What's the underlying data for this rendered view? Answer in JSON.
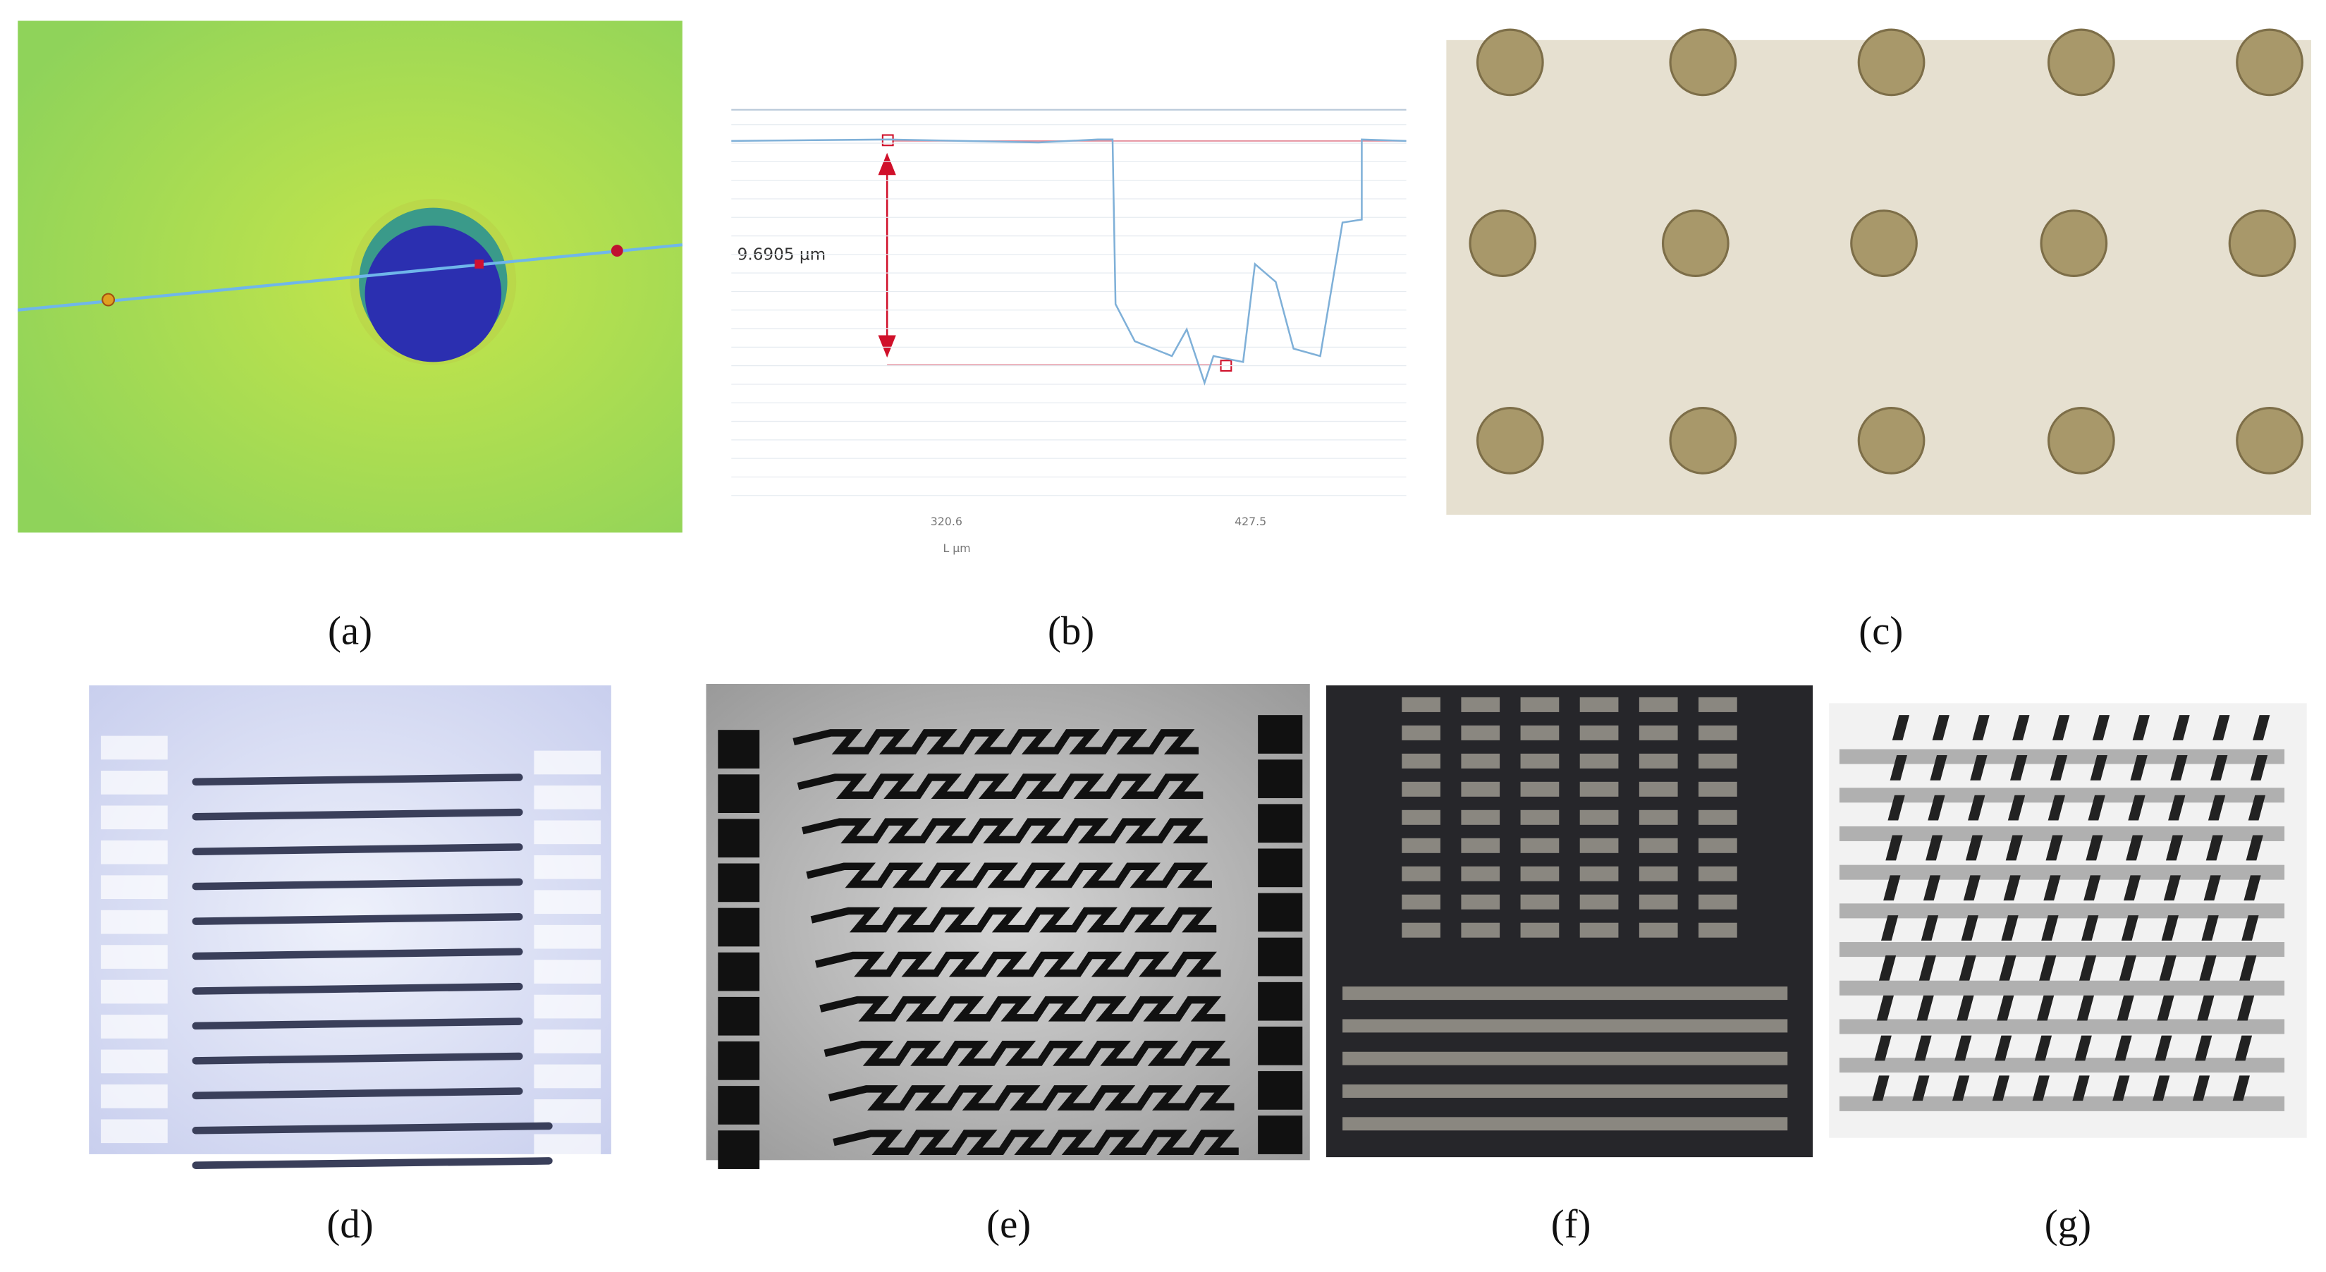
{
  "panels": [
    {
      "label": "(a)"
    },
    {
      "label": "(b)",
      "annotation": "9.6905 µm",
      "xticks": [
        320.6,
        427.5
      ],
      "x_label": "L µm"
    },
    {
      "label": "(c)"
    },
    {
      "label": "(d)"
    },
    {
      "label": "(e)"
    },
    {
      "label": "(f)"
    },
    {
      "label": "(g)"
    }
  ]
}
